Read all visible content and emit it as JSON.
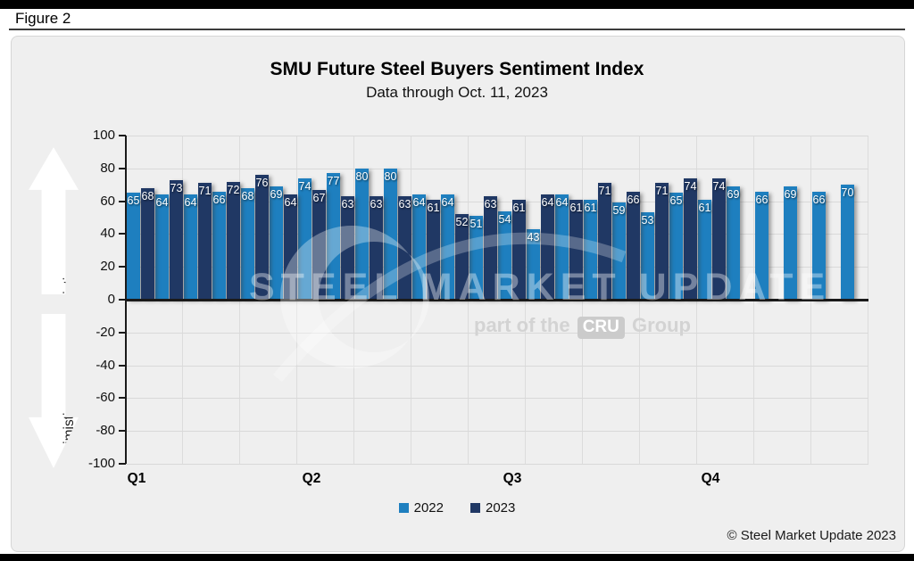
{
  "figure_label": "Figure 2",
  "chart_data": {
    "type": "bar",
    "title": "SMU Future Steel Buyers Sentiment Index",
    "subtitle": "Data through Oct. 11, 2023",
    "ylim": [
      -100,
      100
    ],
    "yticks": [
      100,
      80,
      60,
      40,
      20,
      0,
      -20,
      -40,
      -60,
      -80,
      -100
    ],
    "x_quarter_labels": [
      "Q1",
      "Q2",
      "Q3",
      "Q4"
    ],
    "grid": true,
    "legend_position": "bottom",
    "axis_annotations": {
      "positive": "Optimistic",
      "negative": "Pessimistic"
    },
    "series": [
      {
        "name": "2022",
        "color": "#1E7FBF",
        "values": [
          65,
          64,
          64,
          66,
          68,
          69,
          74,
          77,
          80,
          80,
          64,
          64,
          51,
          54,
          43,
          64,
          61,
          59,
          53,
          65,
          61,
          69,
          66,
          69,
          66,
          70
        ]
      },
      {
        "name": "2023",
        "color": "#203864",
        "values": [
          68,
          73,
          71,
          72,
          76,
          64,
          67,
          63,
          63,
          63,
          61,
          52,
          63,
          61,
          64,
          61,
          71,
          66,
          71,
          74,
          74
        ]
      }
    ]
  },
  "watermark": {
    "title": "STEEL MARKET UPDATE",
    "subtitle_prefix": "part of the",
    "subtitle_box": "CRU",
    "subtitle_suffix": "Group"
  },
  "footer": {
    "copyright": "© Steel Market Update 2023"
  },
  "colors": {
    "bar_2022": "#1E7FBF",
    "bar_2023": "#203864",
    "plot_background": "#EFEFEF",
    "gridline": "#D9D9D9",
    "axis": "#1A1A1A"
  }
}
